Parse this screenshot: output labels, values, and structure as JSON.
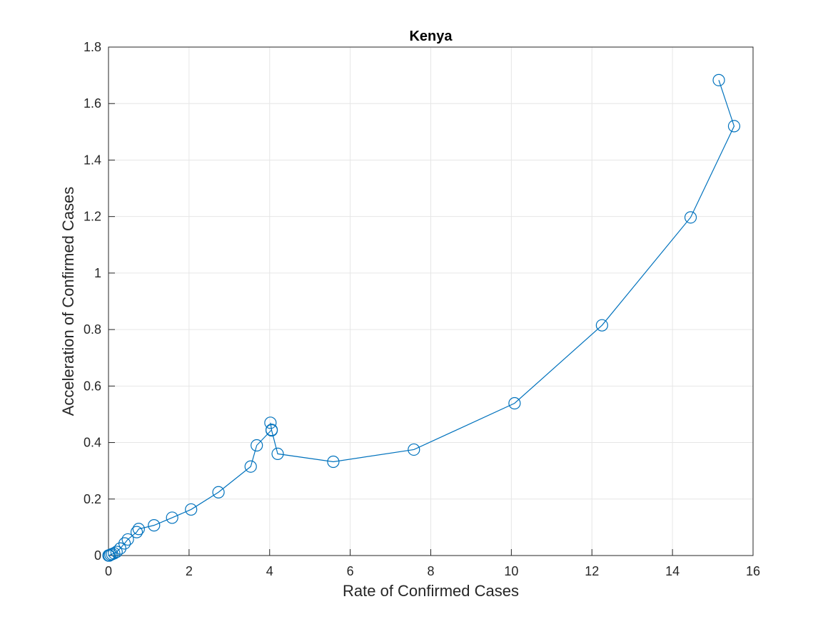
{
  "chart_data": {
    "type": "line",
    "title": "Kenya",
    "xlabel": "Rate of Confirmed Cases",
    "ylabel": "Acceleration of Confirmed Cases",
    "xlim": [
      0,
      16
    ],
    "ylim": [
      0,
      1.8
    ],
    "xticks": [
      "0",
      "2",
      "4",
      "6",
      "8",
      "10",
      "12",
      "14",
      "16"
    ],
    "yticks": [
      "0",
      "0.2",
      "0.4",
      "0.6",
      "0.8",
      "1",
      "1.2",
      "1.4",
      "1.6",
      "1.8"
    ],
    "grid": true,
    "marker": "circle",
    "series_color": "#0072BD",
    "series": [
      {
        "x": [
          0.0,
          0.02,
          0.05,
          0.09,
          0.14,
          0.2,
          0.29,
          0.4,
          0.48,
          0.7,
          0.75,
          1.13,
          1.58,
          2.05,
          2.73,
          3.53,
          3.68,
          4.05,
          4.02,
          4.05,
          4.2,
          5.58,
          7.58,
          10.08,
          12.25,
          14.45,
          15.53,
          15.15
        ],
        "y": [
          0.0,
          0.0,
          0.003,
          0.005,
          0.008,
          0.013,
          0.025,
          0.043,
          0.057,
          0.083,
          0.094,
          0.107,
          0.134,
          0.163,
          0.224,
          0.315,
          0.39,
          0.445,
          0.47,
          0.443,
          0.36,
          0.332,
          0.375,
          0.539,
          0.815,
          1.197,
          1.52,
          1.683
        ]
      }
    ]
  }
}
